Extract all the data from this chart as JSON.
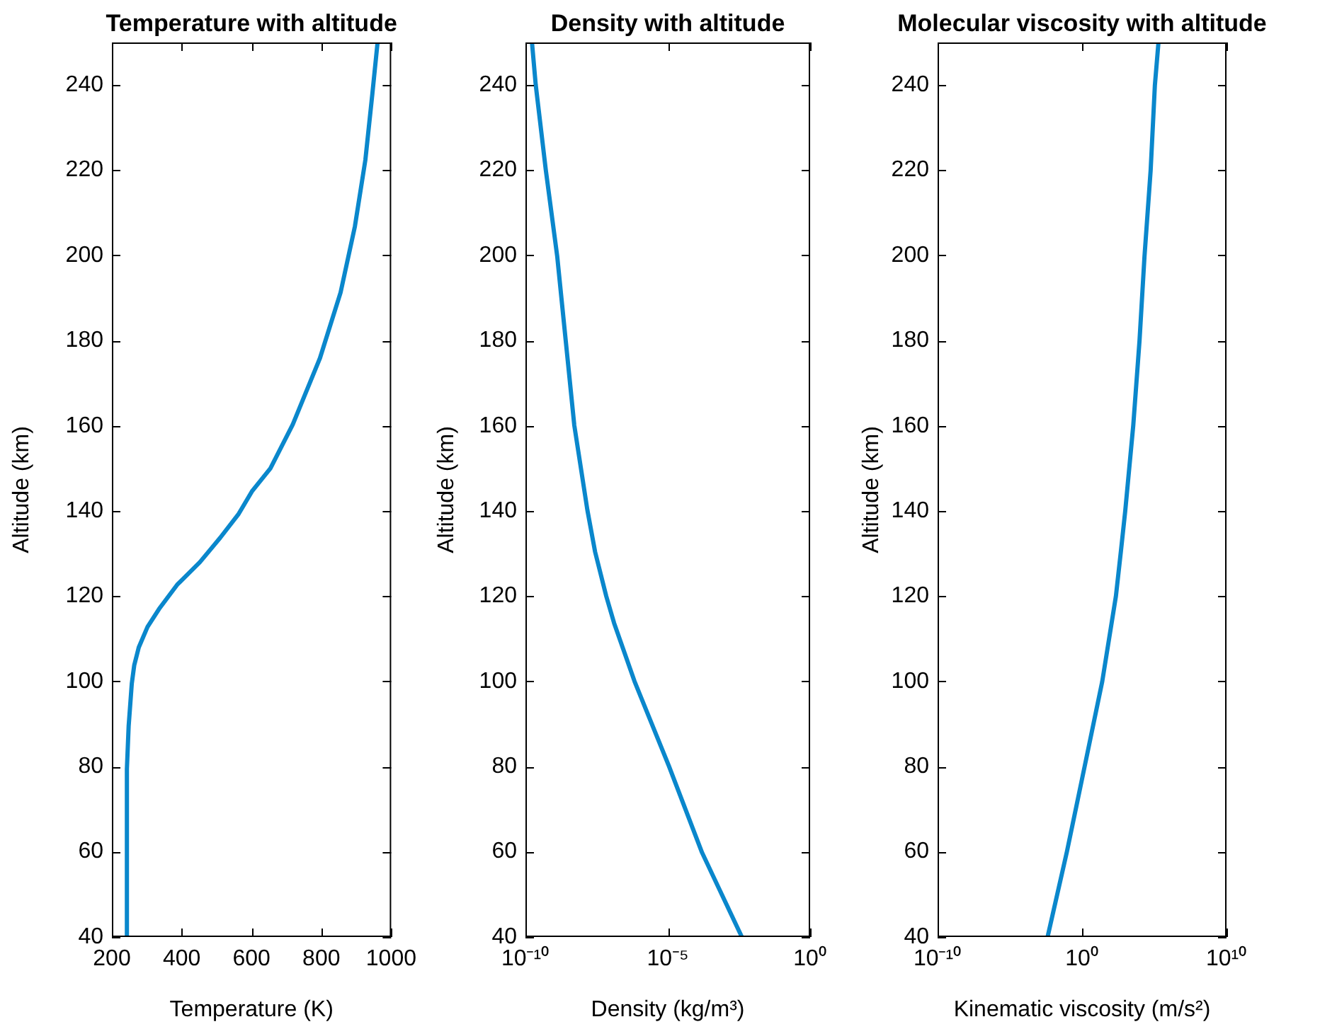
{
  "chart_data": [
    {
      "type": "line",
      "title": "Temperature with altitude",
      "xlabel": "Temperature (K)",
      "ylabel": "Altitude (km)",
      "xlim": [
        200,
        1000
      ],
      "xticks": [
        200,
        400,
        600,
        800,
        1000
      ],
      "ylim": [
        40,
        250
      ],
      "yticks": [
        40,
        60,
        80,
        100,
        120,
        140,
        160,
        180,
        200,
        220,
        240
      ],
      "series": [
        {
          "color": "#0a87cc",
          "x": [
            243,
            243,
            248,
            257,
            264,
            277,
            302,
            335,
            387,
            452,
            510,
            562,
            601,
            654,
            718,
            796,
            855,
            896,
            926,
            946,
            961
          ],
          "values": [
            40,
            79.5,
            89.5,
            99.5,
            103.8,
            108,
            112.8,
            117,
            122.7,
            128,
            133.7,
            139.2,
            144.6,
            150,
            160.3,
            175.9,
            191.3,
            206.8,
            222.4,
            237.9,
            250
          ]
        }
      ]
    },
    {
      "type": "line",
      "title": "Density with altitude",
      "xlabel": "Density (kg/m³)",
      "ylabel": "Altitude (km)",
      "log": "x",
      "xlim": [
        1e-10,
        1
      ],
      "xticks": [
        {
          "value": 1e-10,
          "label": "10⁻¹⁰"
        },
        {
          "value": 1e-05,
          "label": "10⁻⁵"
        },
        {
          "value": 1,
          "label": "10⁰"
        }
      ],
      "ylim": [
        40,
        250
      ],
      "yticks": [
        40,
        60,
        80,
        100,
        120,
        140,
        160,
        180,
        200,
        220,
        240
      ],
      "series": [
        {
          "color": "#0a87cc",
          "x": [
            0.004,
            0.00016,
            1.1e-05,
            6.8e-07,
            1.3e-07,
            6.9e-08,
            2.8e-08,
            1.5e-08,
            5.2e-09,
            2.6e-09,
            1.3e-09,
            5.2e-10,
            2.3e-10,
            1.7e-10
          ],
          "values": [
            40,
            59.8,
            80.1,
            100,
            113.7,
            120,
            130.4,
            140.2,
            160.1,
            180,
            199.9,
            220,
            240,
            249.9
          ]
        }
      ]
    },
    {
      "type": "line",
      "title": "Molecular viscosity with altitude",
      "xlabel": "Kinematic viscosity (m/s²)",
      "ylabel": "Altitude (km)",
      "log": "x",
      "xlim": [
        1e-10,
        10000000000.0
      ],
      "xticks": [
        {
          "value": 1e-10,
          "label": "10⁻¹⁰"
        },
        {
          "value": 1,
          "label": "10⁰"
        },
        {
          "value": 10000000000.0,
          "label": "10¹⁰"
        }
      ],
      "ylim": [
        40,
        250
      ],
      "yticks": [
        40,
        60,
        80,
        100,
        120,
        140,
        160,
        180,
        200,
        220,
        240
      ],
      "series": [
        {
          "color": "#0a87cc",
          "x": [
            0.0041,
            0.089,
            1.5,
            25,
            220,
            490,
            980,
            3500,
            9500,
            21000.0,
            56000.0,
            110000.0,
            190000.0
          ],
          "values": [
            40,
            60,
            80,
            100,
            120,
            130.6,
            140.1,
            160.1,
            180,
            199.8,
            220,
            240,
            249.6
          ]
        }
      ]
    }
  ]
}
